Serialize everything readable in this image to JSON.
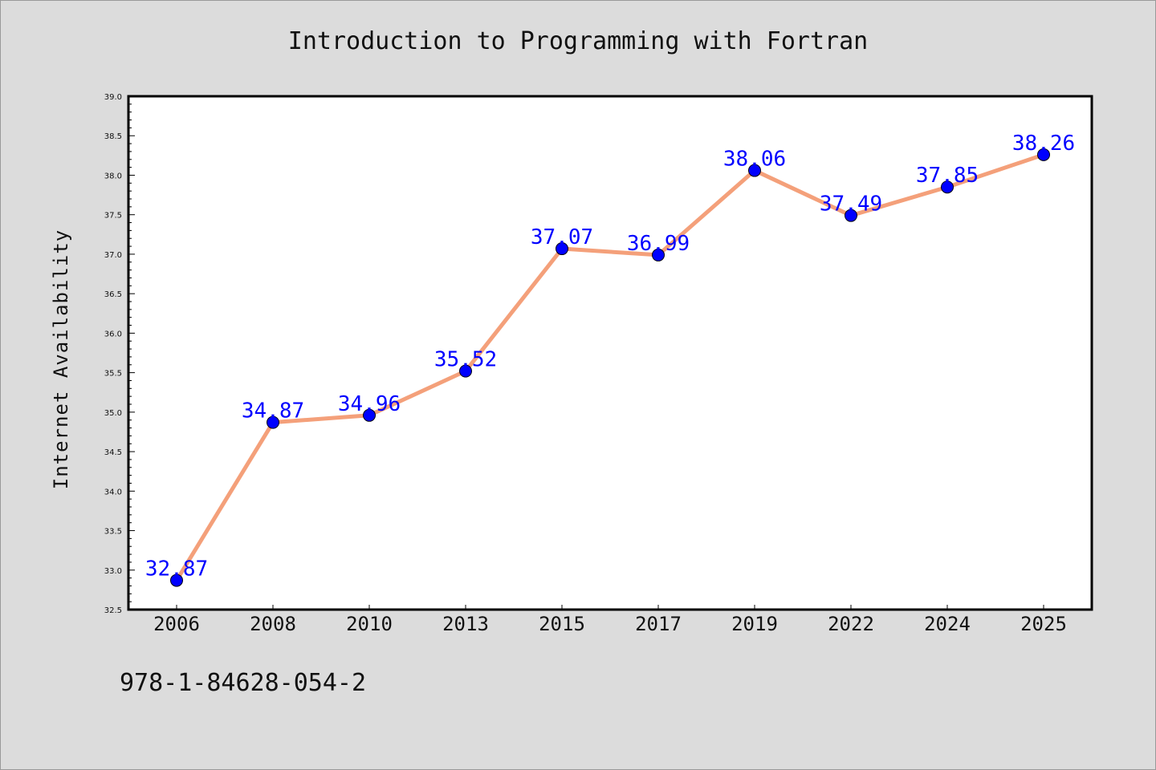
{
  "chart_data": {
    "type": "line",
    "title": "Introduction to Programming with Fortran",
    "ylabel": "Internet Availability",
    "xlabel": "",
    "categories": [
      "2006",
      "2008",
      "2010",
      "2013",
      "2015",
      "2017",
      "2019",
      "2022",
      "2024",
      "2025"
    ],
    "series": [
      {
        "values": [
          32.87,
          34.87,
          34.96,
          35.52,
          37.07,
          36.99,
          38.06,
          37.49,
          37.85,
          38.26
        ],
        "line_color": "#f4a07a",
        "marker_color": "#0000ff"
      }
    ],
    "ylim": [
      32.5,
      39.0
    ],
    "yticks": [
      "32.5",
      "33.0",
      "33.5",
      "34.0",
      "34.5",
      "35.0",
      "35.5",
      "36.0",
      "36.5",
      "37.0",
      "37.5",
      "38.0",
      "38.5",
      "39.0"
    ],
    "data_labels": [
      "32.87",
      "34.87",
      "34.96",
      "35.52",
      "37.07",
      "36.99",
      "38.06",
      "37.49",
      "37.85",
      "38.26"
    ],
    "grid": false,
    "legend": "none",
    "label_color": "#0000ff"
  },
  "footer": {
    "isbn": "978-1-84628-054-2"
  },
  "colors": {
    "background": "#dcdcdc",
    "plot_background": "#ffffff"
  }
}
